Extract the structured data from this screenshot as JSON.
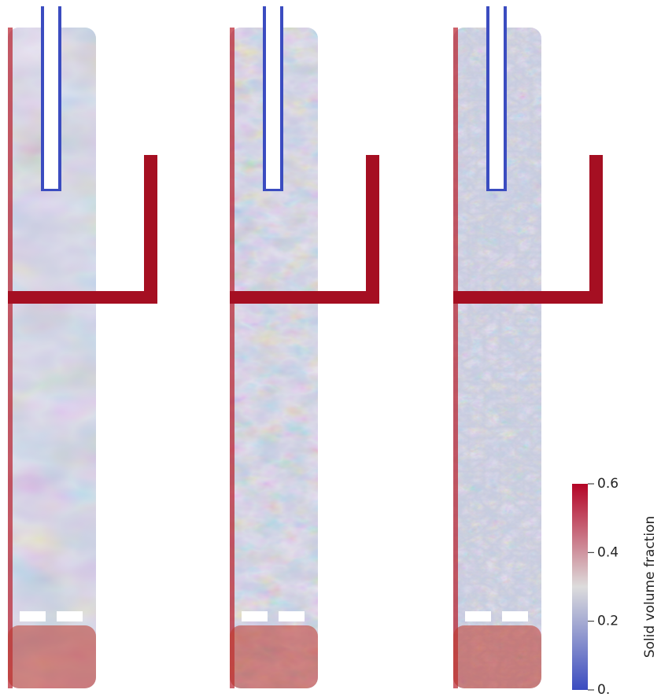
{
  "colorbar": {
    "label": "Solid volume fraction",
    "range": [
      0,
      0.6
    ],
    "ticks": [
      {
        "value": 0,
        "label": "0."
      },
      0.2,
      0.4,
      0.6
    ]
  }
}
